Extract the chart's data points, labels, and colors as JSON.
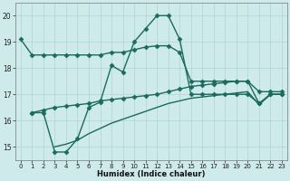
{
  "xlabel": "Humidex (Indice chaleur)",
  "bg_color": "#ceeaea",
  "line_color": "#1a6b5e",
  "grid_color": "#aed4d4",
  "x_ticks": [
    0,
    1,
    2,
    3,
    4,
    5,
    6,
    7,
    8,
    9,
    10,
    11,
    12,
    13,
    14,
    15,
    16,
    17,
    18,
    19,
    20,
    21,
    22,
    23
  ],
  "y_ticks": [
    15,
    16,
    17,
    18,
    19,
    20
  ],
  "ylim": [
    14.5,
    20.5
  ],
  "xlim": [
    -0.5,
    23.5
  ],
  "series": [
    {
      "x": [
        0,
        1,
        2,
        3,
        4,
        5,
        6,
        7,
        8,
        9,
        10,
        11,
        12,
        13,
        14,
        15,
        16,
        17,
        18,
        19,
        20,
        21,
        22,
        23
      ],
      "y": [
        19.1,
        18.5,
        18.5,
        18.5,
        18.5,
        18.5,
        18.5,
        18.5,
        18.6,
        18.6,
        18.7,
        18.8,
        18.85,
        18.85,
        18.6,
        17.5,
        17.5,
        17.5,
        17.5,
        17.5,
        17.5,
        17.1,
        17.1,
        17.1
      ],
      "marker": "D",
      "markersize": 2.5,
      "linewidth": 1.0
    },
    {
      "x": [
        1,
        2,
        3,
        4,
        5,
        6,
        7,
        8,
        9,
        10,
        11,
        12,
        13,
        14,
        15,
        16,
        17,
        18,
        19,
        20,
        21,
        22,
        23
      ],
      "y": [
        16.3,
        16.3,
        14.8,
        14.8,
        15.3,
        16.5,
        16.7,
        18.1,
        17.85,
        19.0,
        19.5,
        20.0,
        20.0,
        19.1,
        17.0,
        17.0,
        17.0,
        17.0,
        17.0,
        17.0,
        16.65,
        17.0,
        17.0
      ],
      "marker": "D",
      "markersize": 2.5,
      "linewidth": 1.0
    },
    {
      "x": [
        1,
        2,
        3,
        4,
        5,
        6,
        7,
        8,
        9,
        10,
        11,
        12,
        13,
        14,
        15,
        16,
        17,
        18,
        19,
        20,
        21,
        22,
        23
      ],
      "y": [
        16.3,
        16.4,
        16.5,
        16.55,
        16.6,
        16.65,
        16.75,
        16.8,
        16.85,
        16.9,
        16.95,
        17.0,
        17.1,
        17.2,
        17.3,
        17.35,
        17.4,
        17.45,
        17.5,
        17.5,
        16.65,
        17.0,
        17.0
      ],
      "marker": "D",
      "markersize": 2.5,
      "linewidth": 1.0
    },
    {
      "x": [
        3,
        4,
        5,
        6,
        7,
        8,
        9,
        10,
        11,
        12,
        13,
        14,
        15,
        16,
        17,
        18,
        19,
        20,
        21,
        22,
        23
      ],
      "y": [
        15.0,
        15.1,
        15.25,
        15.5,
        15.7,
        15.9,
        16.05,
        16.2,
        16.35,
        16.5,
        16.65,
        16.75,
        16.85,
        16.9,
        16.95,
        17.0,
        17.05,
        17.1,
        16.6,
        17.0,
        17.0
      ],
      "marker": null,
      "markersize": 0,
      "linewidth": 1.0
    }
  ]
}
